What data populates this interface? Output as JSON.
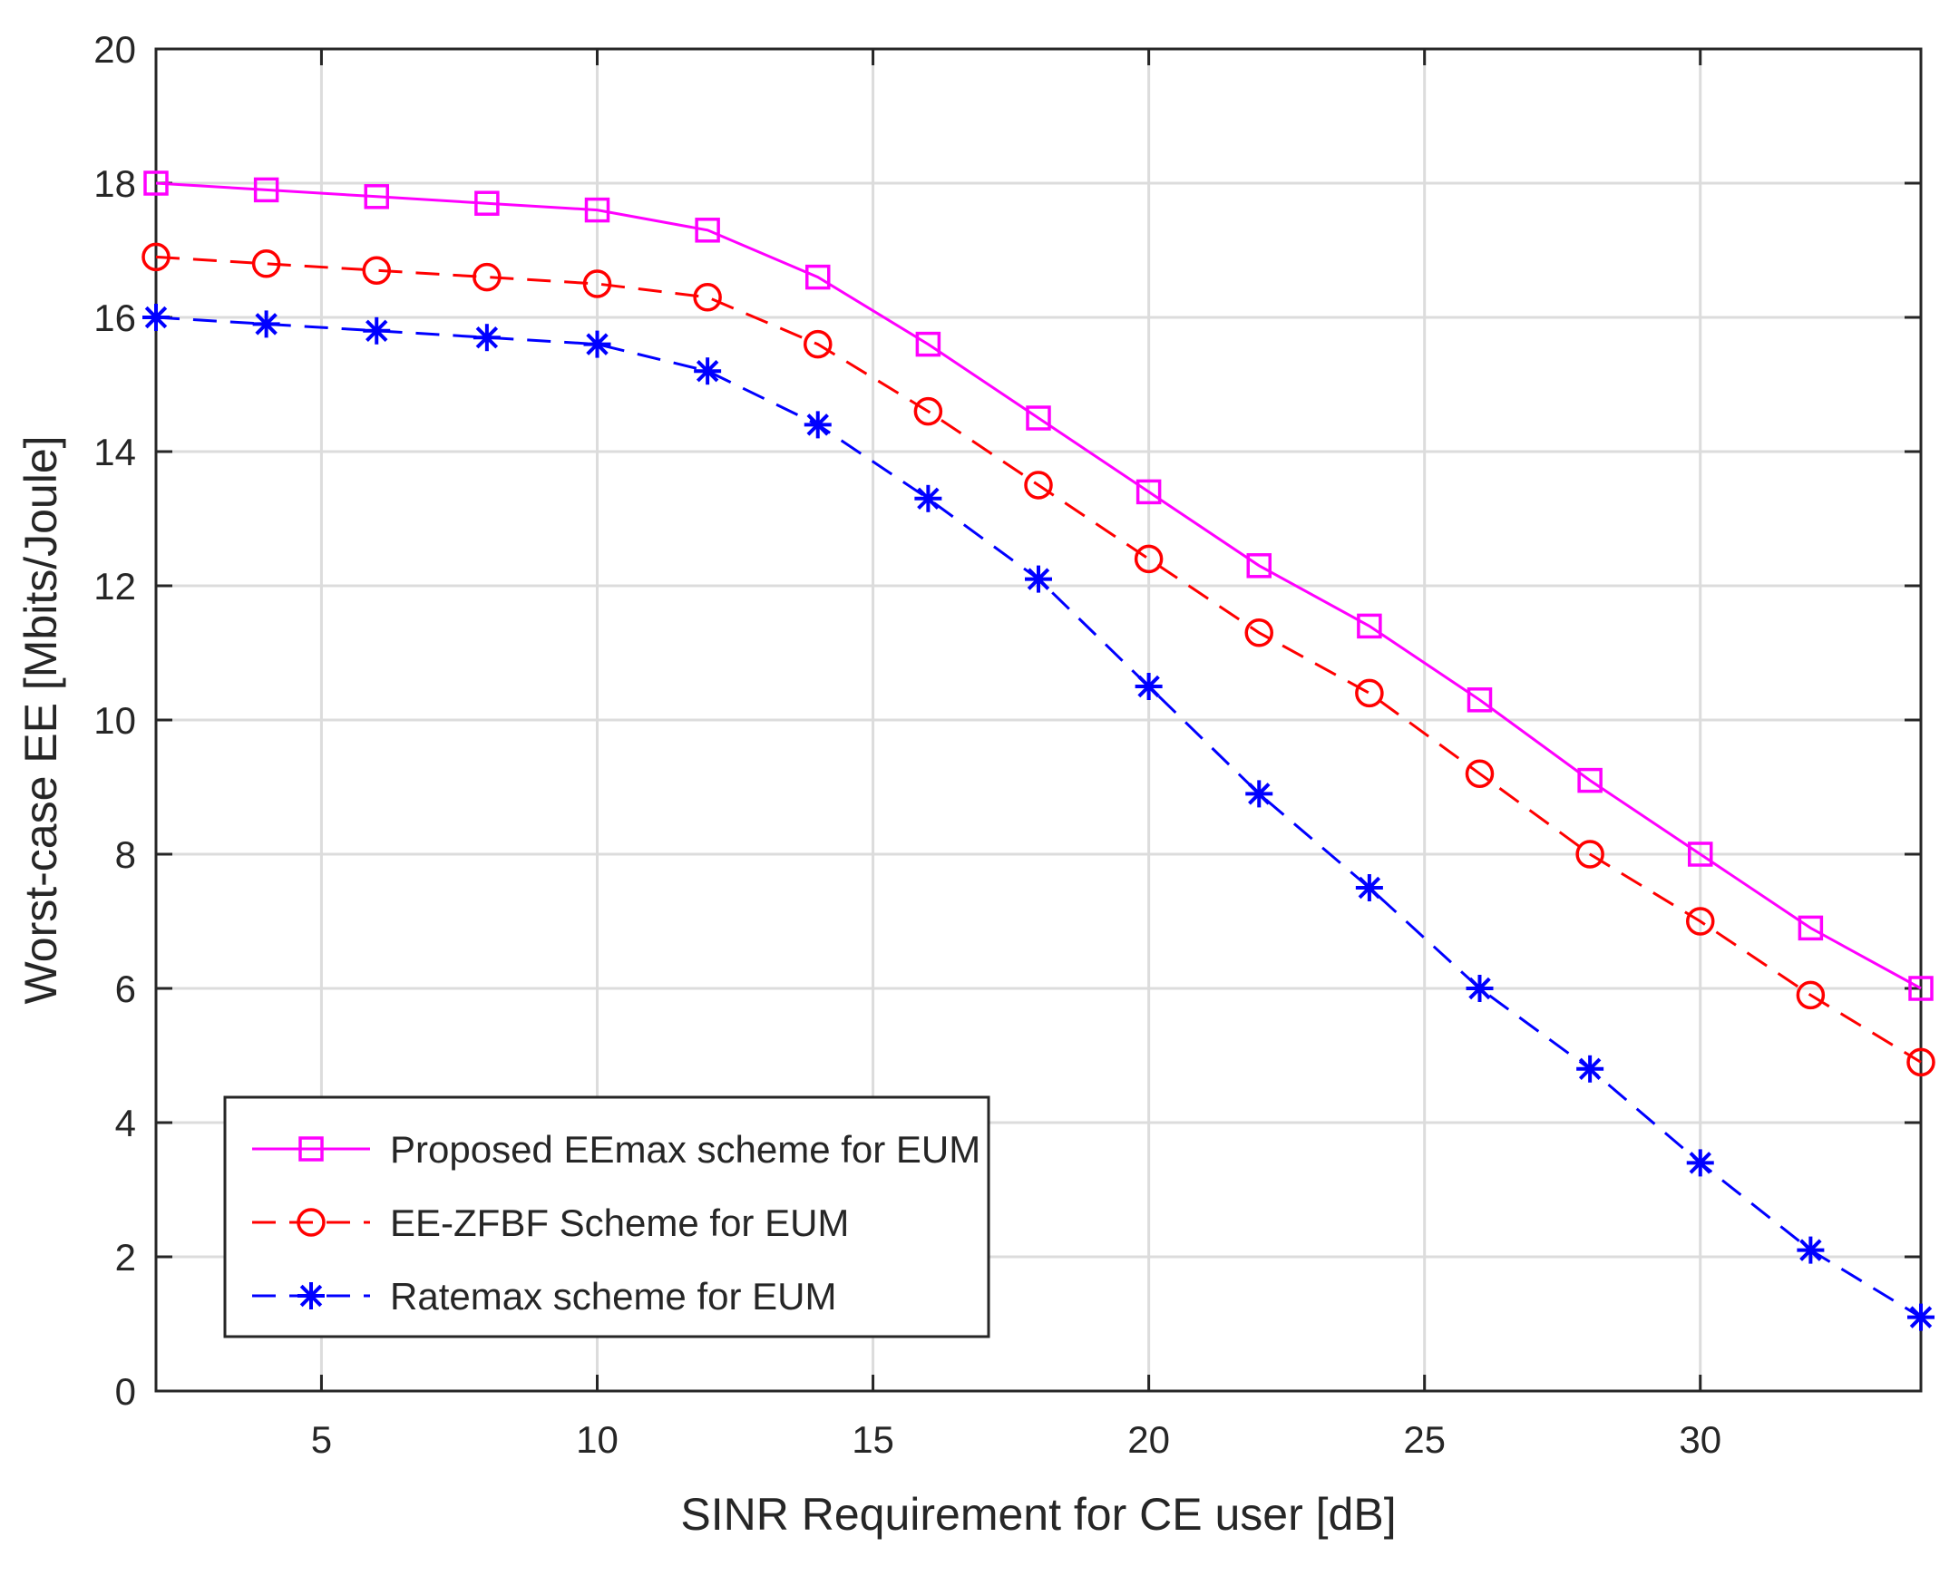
{
  "chart_data": {
    "type": "line",
    "title": "",
    "xlabel": "SINR Requirement for CE user [dB]",
    "ylabel": "Worst-case EE [Mbits/Joule]",
    "xlim": [
      2,
      34
    ],
    "ylim": [
      0,
      20
    ],
    "xticks": [
      5,
      10,
      15,
      20,
      25,
      30
    ],
    "yticks": [
      0,
      2,
      4,
      6,
      8,
      10,
      12,
      14,
      16,
      18,
      20
    ],
    "grid": true,
    "legend_position": "bottom-left",
    "x": [
      2,
      4,
      6,
      8,
      10,
      12,
      14,
      16,
      18,
      20,
      22,
      24,
      26,
      28,
      30,
      32,
      34
    ],
    "series": [
      {
        "name": "Proposed EEmax scheme for EUM",
        "color": "#ff00ff",
        "line_style": "solid",
        "marker": "square",
        "values": [
          18.0,
          17.9,
          17.8,
          17.7,
          17.6,
          17.3,
          16.6,
          15.6,
          14.5,
          13.4,
          12.3,
          11.4,
          10.3,
          9.1,
          8.0,
          6.9,
          6.0
        ]
      },
      {
        "name": "EE-ZFBF Scheme for EUM",
        "color": "#ff0000",
        "line_style": "dashed",
        "marker": "circle",
        "values": [
          16.9,
          16.8,
          16.7,
          16.6,
          16.5,
          16.3,
          15.6,
          14.6,
          13.5,
          12.4,
          11.3,
          10.4,
          9.2,
          8.0,
          7.0,
          5.9,
          4.9
        ]
      },
      {
        "name": "Ratemax scheme for EUM",
        "color": "#0000ff",
        "line_style": "dashed",
        "marker": "asterisk",
        "values": [
          16.0,
          15.9,
          15.8,
          15.7,
          15.6,
          15.2,
          14.4,
          13.3,
          12.1,
          10.5,
          8.9,
          7.5,
          6.0,
          4.8,
          3.4,
          2.1,
          1.1
        ]
      }
    ]
  }
}
